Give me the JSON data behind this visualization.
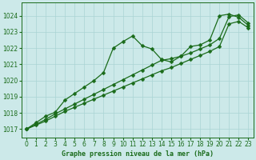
{
  "xlabel": "Graphe pression niveau de la mer (hPa)",
  "ylim": [
    1016.5,
    1024.8
  ],
  "xlim": [
    -0.5,
    23.5
  ],
  "yticks": [
    1017,
    1018,
    1019,
    1020,
    1021,
    1022,
    1023,
    1024
  ],
  "xticks": [
    0,
    1,
    2,
    3,
    4,
    5,
    6,
    7,
    8,
    9,
    10,
    11,
    12,
    13,
    14,
    15,
    16,
    17,
    18,
    19,
    20,
    21,
    22,
    23
  ],
  "background_color": "#cce9e9",
  "grid_color": "#aad4d4",
  "line_color": "#1a6b1a",
  "line_jagged": [
    1017.0,
    1017.4,
    1017.8,
    1018.05,
    1018.8,
    1019.2,
    1019.6,
    1020.0,
    1020.5,
    1022.0,
    1022.4,
    1022.75,
    1022.15,
    1021.95,
    1021.3,
    1021.15,
    1021.5,
    1022.1,
    1022.2,
    1022.5,
    1024.0,
    1024.1,
    1023.9,
    1023.4
  ],
  "line_upper": [
    1017.0,
    1017.3,
    1017.6,
    1017.95,
    1018.25,
    1018.55,
    1018.85,
    1019.15,
    1019.45,
    1019.75,
    1020.05,
    1020.35,
    1020.65,
    1020.95,
    1021.25,
    1021.35,
    1021.5,
    1021.7,
    1021.95,
    1022.2,
    1022.6,
    1023.95,
    1024.05,
    1023.55
  ],
  "line_lower": [
    1017.0,
    1017.25,
    1017.5,
    1017.8,
    1018.1,
    1018.35,
    1018.6,
    1018.85,
    1019.1,
    1019.35,
    1019.6,
    1019.85,
    1020.1,
    1020.35,
    1020.6,
    1020.8,
    1021.05,
    1021.3,
    1021.55,
    1021.8,
    1022.1,
    1023.5,
    1023.65,
    1023.25
  ],
  "marker_size": 2.5,
  "line_width": 0.9
}
